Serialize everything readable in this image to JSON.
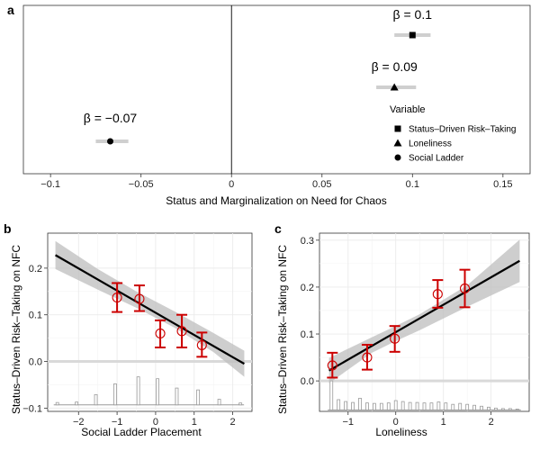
{
  "figure": {
    "colors": {
      "fit": "#000000",
      "band": "#bdbdbd",
      "error": "#cc0000",
      "ci_bar": "#cfcfcf",
      "grid": "#ebebeb",
      "hist": "#9a9a9a"
    }
  },
  "chart_data": [
    {
      "panel_label": "a",
      "type": "scatter",
      "xlabel": "Status and Marginalization on Need for Chaos",
      "xlim": [
        -0.115,
        0.165
      ],
      "xticks": [
        -0.1,
        -0.05,
        0,
        0.05,
        0.1,
        0.15
      ],
      "xtick_labels": [
        "−0.1",
        "−0.05",
        "0",
        "0.05",
        "0.1",
        "0.15"
      ],
      "grid": false,
      "legend_position": "bottom-right",
      "legend_title": "Variable",
      "series": [
        {
          "name": "Status–Driven Risk–Taking",
          "marker": "square",
          "estimate": 0.1,
          "ci": [
            0.09,
            0.11
          ],
          "label": "β = 0.1"
        },
        {
          "name": "Loneliness",
          "marker": "triangle",
          "estimate": 0.09,
          "ci": [
            0.08,
            0.102
          ],
          "label": "β = 0.09"
        },
        {
          "name": "Social Ladder",
          "marker": "circle",
          "estimate": -0.067,
          "ci": [
            -0.075,
            -0.057
          ],
          "label": "β = −0.07"
        }
      ]
    },
    {
      "panel_label": "b",
      "type": "line",
      "xlabel": "Social Ladder Placement",
      "ylabel": "Status–Driven Risk–Taking on NFC",
      "xlim": [
        -2.8,
        2.5
      ],
      "ylim": [
        -0.107,
        0.275
      ],
      "xticks": [
        -2,
        -1,
        0,
        1,
        2
      ],
      "xtick_labels": [
        "−2",
        "−1",
        "0",
        "1",
        "2"
      ],
      "yticks": [
        -0.1,
        0,
        0.1,
        0.2
      ],
      "ytick_labels": [
        "−0.1",
        "0.0",
        "0.1",
        "0.2"
      ],
      "grid": true,
      "fit_line": {
        "x": [
          -2.6,
          2.3
        ],
        "y": [
          0.228,
          -0.005
        ]
      },
      "ci_band": {
        "x": [
          -2.6,
          -1.5,
          -0.5,
          0.5,
          1.5,
          2.3
        ],
        "lower": [
          0.198,
          0.154,
          0.115,
          0.072,
          0.02,
          -0.033
        ],
        "upper": [
          0.258,
          0.198,
          0.15,
          0.107,
          0.061,
          0.023
        ]
      },
      "points": [
        {
          "x": -1.0,
          "y": 0.137,
          "lower": 0.106,
          "upper": 0.168
        },
        {
          "x": -0.42,
          "y": 0.134,
          "lower": 0.108,
          "upper": 0.163
        },
        {
          "x": 0.12,
          "y": 0.06,
          "lower": 0.03,
          "upper": 0.088
        },
        {
          "x": 0.68,
          "y": 0.065,
          "lower": 0.03,
          "upper": 0.1
        },
        {
          "x": 1.2,
          "y": 0.035,
          "lower": 0.01,
          "upper": 0.062
        }
      ],
      "histogram": {
        "baseline": -0.093,
        "x": [
          -2.55,
          -2.05,
          -1.55,
          -1.05,
          -0.45,
          0.05,
          0.55,
          1.1,
          1.65,
          2.2
        ],
        "heights": [
          0.005,
          0.006,
          0.022,
          0.045,
          0.06,
          0.056,
          0.036,
          0.032,
          0.012,
          0.004
        ]
      }
    },
    {
      "panel_label": "c",
      "type": "line",
      "xlabel": "Loneliness",
      "ylabel": "Status–Driven Risk–Taking on NFC",
      "xlim": [
        -1.6,
        2.8
      ],
      "ylim": [
        -0.065,
        0.315
      ],
      "xticks": [
        -1,
        0,
        1,
        2
      ],
      "xtick_labels": [
        "−1",
        "0",
        "1",
        "2"
      ],
      "yticks": [
        0,
        0.1,
        0.2,
        0.3
      ],
      "ytick_labels": [
        "0.0",
        "0.1",
        "0.2",
        "0.3"
      ],
      "grid": true,
      "fit_line": {
        "x": [
          -1.4,
          2.6
        ],
        "y": [
          0.022,
          0.256
        ]
      },
      "ci_band": {
        "x": [
          -1.4,
          -0.5,
          0.0,
          0.5,
          1.5,
          2.6
        ],
        "lower": [
          -0.005,
          0.06,
          0.085,
          0.108,
          0.158,
          0.211
        ],
        "upper": [
          0.049,
          0.093,
          0.117,
          0.142,
          0.204,
          0.301
        ]
      },
      "points": [
        {
          "x": -1.33,
          "y": 0.033,
          "lower": 0.007,
          "upper": 0.06
        },
        {
          "x": -0.6,
          "y": 0.05,
          "lower": 0.024,
          "upper": 0.077
        },
        {
          "x": -0.02,
          "y": 0.09,
          "lower": 0.062,
          "upper": 0.117
        },
        {
          "x": 0.88,
          "y": 0.185,
          "lower": 0.156,
          "upper": 0.215
        },
        {
          "x": 1.45,
          "y": 0.197,
          "lower": 0.157,
          "upper": 0.237
        }
      ],
      "histogram": {
        "baseline": -0.062,
        "x": [
          -1.35,
          -1.2,
          -1.05,
          -0.9,
          -0.75,
          -0.6,
          -0.45,
          -0.3,
          -0.15,
          0.0,
          0.15,
          0.3,
          0.45,
          0.6,
          0.75,
          0.9,
          1.05,
          1.2,
          1.35,
          1.5,
          1.65,
          1.8,
          1.95,
          2.1,
          2.25,
          2.4,
          2.55
        ],
        "heights": [
          0.062,
          0.022,
          0.018,
          0.016,
          0.025,
          0.015,
          0.014,
          0.014,
          0.015,
          0.02,
          0.018,
          0.016,
          0.016,
          0.015,
          0.015,
          0.017,
          0.015,
          0.012,
          0.014,
          0.012,
          0.01,
          0.008,
          0.006,
          0.004,
          0.003,
          0.003,
          0.002
        ]
      }
    }
  ]
}
